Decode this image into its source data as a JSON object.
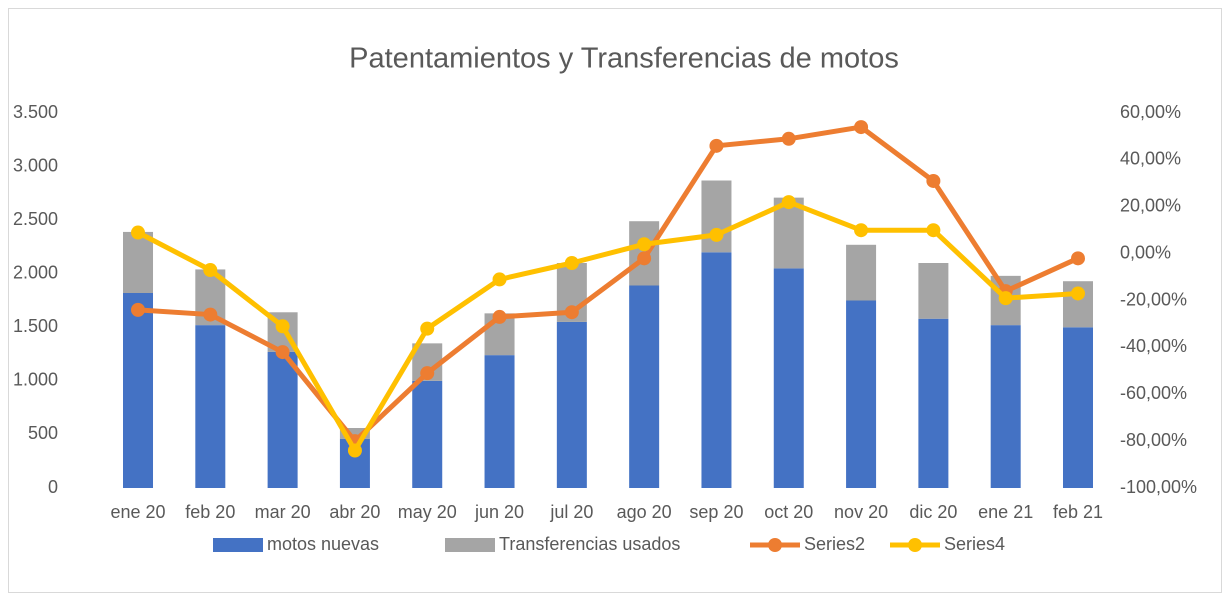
{
  "chart_data": {
    "type": "bar",
    "title": "Patentamientos y Transferencias de motos",
    "categories": [
      "ene 20",
      "feb 20",
      "mar 20",
      "abr 20",
      "may 20",
      "jun 20",
      "jul 20",
      "ago 20",
      "sep 20",
      "oct 20",
      "nov 20",
      "dic 20",
      "ene 21",
      "feb 21"
    ],
    "series": [
      {
        "name": "motos nuevas",
        "color": "#4472c4",
        "type": "bar",
        "values": [
          1820,
          1520,
          1270,
          460,
          1000,
          1240,
          1550,
          1890,
          2200,
          2050,
          1750,
          1580,
          1520,
          1500
        ]
      },
      {
        "name": "Transferencias usados",
        "color": "#a5a5a5",
        "type": "bar",
        "values": [
          570,
          520,
          370,
          100,
          350,
          390,
          550,
          600,
          670,
          660,
          520,
          520,
          460,
          430
        ]
      },
      {
        "name": "Series2",
        "color": "#ed7d31",
        "type": "line",
        "axis": "y2",
        "values": [
          -24,
          -26,
          -42,
          -80,
          -51,
          -27,
          -25,
          -2,
          46,
          49,
          54,
          31,
          -16,
          -2
        ]
      },
      {
        "name": "Series4",
        "color": "#ffc000",
        "type": "line",
        "axis": "y2",
        "values": [
          9,
          -7,
          -31,
          -84,
          -32,
          -11,
          -4,
          4,
          8,
          22,
          10,
          10,
          -19,
          -17
        ]
      }
    ],
    "stacked": true,
    "ylim": [
      0,
      3500
    ],
    "yticks": [
      0,
      500,
      {
        "value": 1000,
        "label": "1.000"
      },
      {
        "value": 1500,
        "label": "1.500"
      },
      {
        "value": 2000,
        "label": "2.000"
      },
      {
        "value": 2500,
        "label": "2.500"
      },
      {
        "value": 3000,
        "label": "3.000"
      },
      {
        "value": 3500,
        "label": "3.500"
      }
    ],
    "y2lim": [
      -100,
      60
    ],
    "y2ticks": [
      {
        "value": -100,
        "label": "-100,00%"
      },
      {
        "value": -80,
        "label": "-80,00%"
      },
      {
        "value": -60,
        "label": "-60,00%"
      },
      {
        "value": -40,
        "label": "-40,00%"
      },
      {
        "value": -20,
        "label": "-20,00%"
      },
      {
        "value": 0,
        "label": "0,00%"
      },
      {
        "value": 20,
        "label": "20,00%"
      },
      {
        "value": 40,
        "label": "40,00%"
      },
      {
        "value": 60,
        "label": "60,00%"
      }
    ],
    "grid": false,
    "legend": "bottom"
  }
}
